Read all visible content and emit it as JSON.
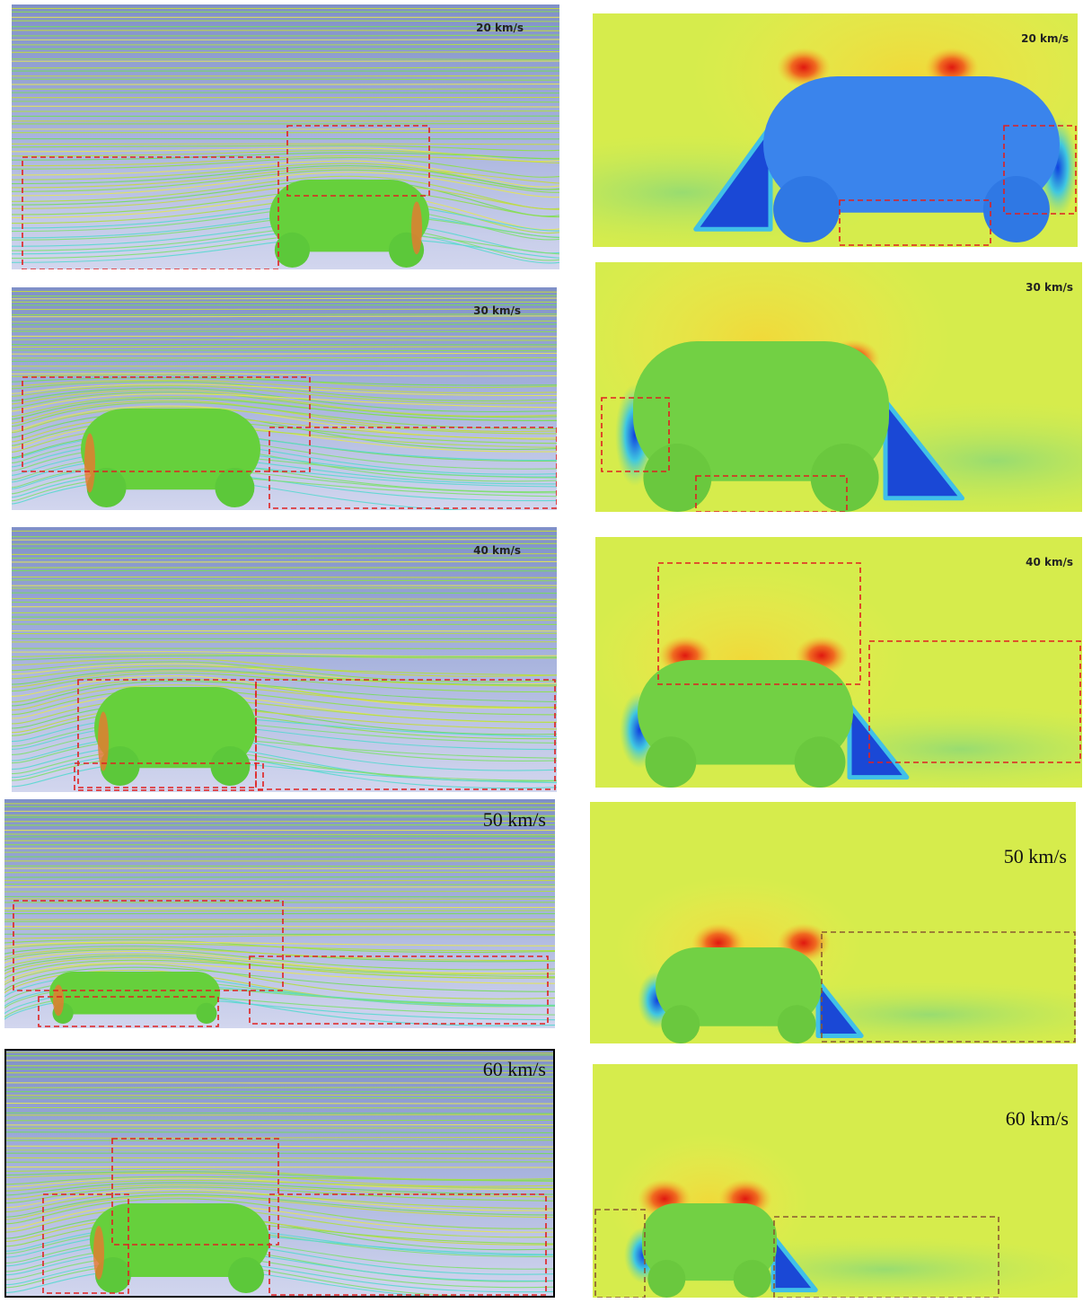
{
  "left_panels": [
    {
      "label": "20 km/s"
    },
    {
      "label": "30 km/s"
    },
    {
      "label": "40 km/s"
    },
    {
      "label": "50 km/s"
    },
    {
      "label": "60 km/s"
    }
  ],
  "right_panels": [
    {
      "label": "20 km/s"
    },
    {
      "label": "30 km/s"
    },
    {
      "label": "40 km/s"
    },
    {
      "label": "50 km/s"
    },
    {
      "label": "60 km/s"
    }
  ]
}
